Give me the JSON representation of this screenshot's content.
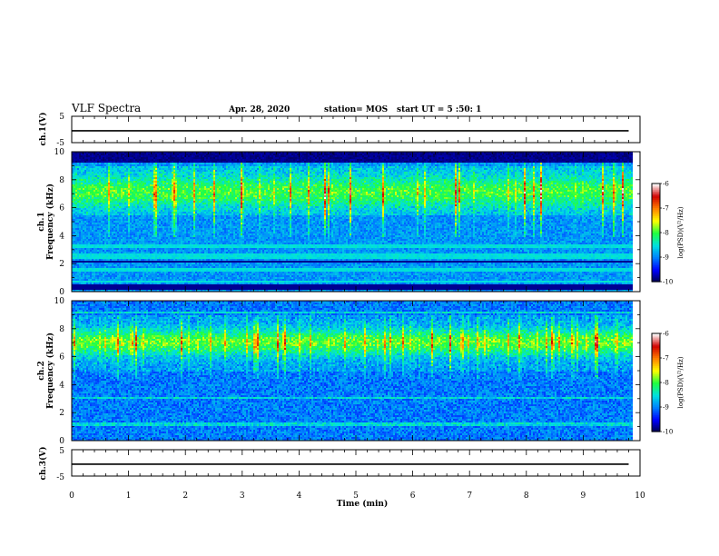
{
  "header": {
    "title": "VLF Spectra",
    "date": "Apr. 28, 2020",
    "station": "station= MOS",
    "start": "start UT = 5 :50: 1"
  },
  "chart_data": [
    {
      "type": "line",
      "name": "ch1-waveform",
      "ylabel": "ch.1(V)",
      "ylim": [
        -5,
        5
      ],
      "yticks": [
        "5",
        "-5"
      ],
      "xlim": [
        0,
        10
      ],
      "x": [
        0,
        9.8
      ],
      "values": [
        -0.5,
        -0.5
      ]
    },
    {
      "type": "heatmap",
      "name": "ch1-spectrogram",
      "ylabel": "ch.1 Frequency (kHz)",
      "ylim": [
        0,
        10
      ],
      "yticks": [
        "0",
        "2",
        "4",
        "6",
        "8",
        "10"
      ],
      "xlim": [
        0,
        10
      ],
      "colorbar": {
        "label": "log(PSD)(V²/Hz)",
        "range": [
          -10,
          -6
        ],
        "ticks": [
          "-6",
          "-7",
          "-8",
          "-9",
          "-10"
        ]
      }
    },
    {
      "type": "heatmap",
      "name": "ch2-spectrogram",
      "ylabel": "ch.2 Frequency (kHz)",
      "ylim": [
        0,
        10
      ],
      "yticks": [
        "0",
        "2",
        "4",
        "6",
        "8",
        "10"
      ],
      "xlim": [
        0,
        10
      ],
      "colorbar": {
        "label": "log(PSD)(V²/Hz)",
        "range": [
          -10,
          -6
        ],
        "ticks": [
          "-6",
          "-7",
          "-8",
          "-9",
          "-10"
        ]
      }
    },
    {
      "type": "line",
      "name": "ch3-waveform",
      "ylabel": "ch.3(V)",
      "ylim": [
        -5,
        5
      ],
      "yticks": [
        "5",
        "-5"
      ],
      "xlim": [
        0,
        10
      ],
      "x": [
        0,
        9.8
      ],
      "values": [
        -0.5,
        -0.5
      ]
    }
  ],
  "xaxis": {
    "label": "Time (min)",
    "ticks": [
      "0",
      "1",
      "2",
      "3",
      "4",
      "5",
      "6",
      "7",
      "8",
      "9",
      "10"
    ]
  },
  "colors": {
    "background": "#ffffff",
    "axis": "#000000",
    "colormap": [
      "#00004a",
      "#0000ff",
      "#0080ff",
      "#00e0e0",
      "#20ff40",
      "#ffff00",
      "#ff8000",
      "#d00000",
      "#ffffff"
    ]
  }
}
